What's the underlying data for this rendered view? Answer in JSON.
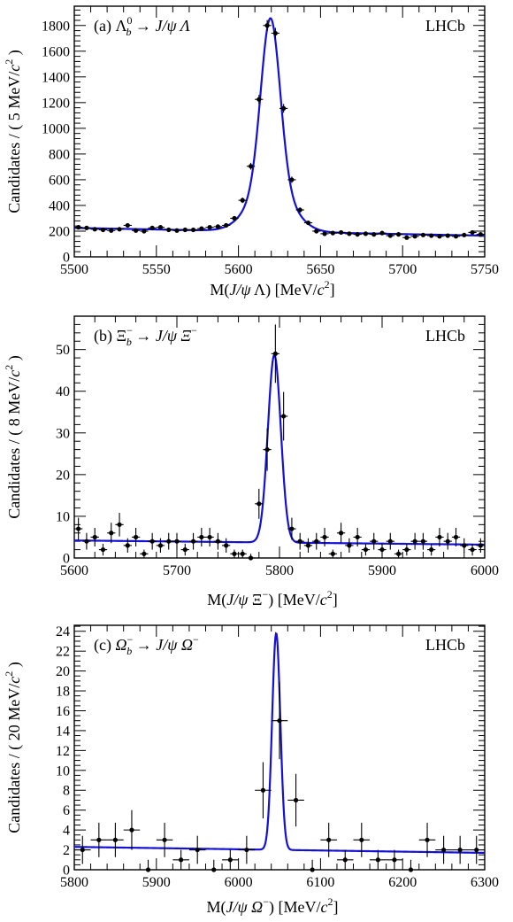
{
  "chart_data": [
    {
      "type": "scatter",
      "panel_label": "(a)",
      "process": {
        "parent": "Λ",
        "parent_sup": "0",
        "parent_sub": "b",
        "arrow": " → ",
        "final": "J/ψ Λ"
      },
      "experiment": "LHCb",
      "ylabel": {
        "pre": "Candidates / ( 5 MeV/",
        "c": "c",
        "sup": "2",
        "post": " )"
      },
      "xlabel": {
        "pre": "M(",
        "ital": "J/ψ",
        "mid": " Λ)",
        "unit_pre": "  [MeV/",
        "c": "c",
        "sup": "2",
        "post": "]"
      },
      "xlim": [
        5500,
        5750
      ],
      "ylim": [
        0,
        1950
      ],
      "xticks": [
        5500,
        5550,
        5600,
        5650,
        5700,
        5750
      ],
      "yticks": [
        0,
        200,
        400,
        600,
        800,
        1000,
        1200,
        1400,
        1600,
        1800
      ],
      "bin_width": 5,
      "data": {
        "x": [
          5502.5,
          5507.5,
          5512.5,
          5517.5,
          5522.5,
          5527.5,
          5532.5,
          5537.5,
          5542.5,
          5547.5,
          5552.5,
          5557.5,
          5562.5,
          5567.5,
          5572.5,
          5577.5,
          5582.5,
          5587.5,
          5592.5,
          5597.5,
          5602.5,
          5607.5,
          5612.5,
          5617.5,
          5622.5,
          5627.5,
          5632.5,
          5637.5,
          5642.5,
          5647.5,
          5652.5,
          5657.5,
          5662.5,
          5667.5,
          5672.5,
          5677.5,
          5682.5,
          5687.5,
          5692.5,
          5697.5,
          5702.5,
          5707.5,
          5712.5,
          5717.5,
          5722.5,
          5727.5,
          5732.5,
          5737.5,
          5742.5,
          5747.5
        ],
        "y": [
          230,
          225,
          215,
          210,
          205,
          215,
          245,
          205,
          200,
          225,
          230,
          210,
          205,
          210,
          210,
          220,
          230,
          235,
          245,
          300,
          440,
          705,
          1225,
          1800,
          1740,
          1155,
          600,
          365,
          265,
          200,
          180,
          185,
          190,
          180,
          175,
          180,
          175,
          185,
          165,
          175,
          150,
          160,
          170,
          165,
          160,
          165,
          160,
          170,
          190,
          175
        ]
      },
      "fit": {
        "mean": 5619.5,
        "sigma_core": 5.8,
        "sigma_wide": 12.5,
        "amp_core": 1300,
        "amp_wide": 360,
        "bkg_intercept": 225,
        "bkg_slope": -0.24
      }
    },
    {
      "type": "scatter",
      "panel_label": "(b)",
      "process": {
        "parent": "Ξ",
        "parent_sup": "−",
        "parent_sub": "b",
        "arrow": " → ",
        "final": "J/ψ Ξ",
        "final_sup": "−"
      },
      "experiment": "LHCb",
      "ylabel": {
        "pre": "Candidates / ( 8 MeV/",
        "c": "c",
        "sup": "2",
        "post": " )"
      },
      "xlabel": {
        "pre": "M(",
        "ital": "J/ψ",
        "mid": " Ξ",
        "mid_sup": "−",
        "mid_post": ")",
        "unit_pre": "  [MeV/",
        "c": "c",
        "sup": "2",
        "post": "]"
      },
      "xlim": [
        5600,
        6000
      ],
      "ylim": [
        0,
        58
      ],
      "xticks": [
        5600,
        5700,
        5800,
        5900,
        6000
      ],
      "yticks": [
        0,
        10,
        20,
        30,
        40,
        50
      ],
      "bin_width": 8,
      "data": {
        "x": [
          5604,
          5612,
          5620,
          5628,
          5636,
          5644,
          5652,
          5660,
          5668,
          5676,
          5684,
          5692,
          5700,
          5708,
          5716,
          5724,
          5732,
          5740,
          5748,
          5756,
          5764,
          5772,
          5780,
          5788,
          5796,
          5804,
          5812,
          5820,
          5828,
          5836,
          5844,
          5852,
          5860,
          5868,
          5876,
          5884,
          5892,
          5900,
          5908,
          5916,
          5924,
          5932,
          5940,
          5948,
          5956,
          5964,
          5972,
          5980,
          5988,
          5996
        ],
        "y": [
          7,
          4,
          5,
          2,
          6,
          8,
          3,
          5,
          1,
          4,
          3,
          4,
          4,
          2,
          4,
          5,
          5,
          4,
          3,
          1,
          1,
          0,
          13,
          26,
          49,
          34,
          7,
          4,
          3,
          4,
          5,
          1,
          6,
          3,
          5,
          2,
          4,
          2,
          4,
          1,
          2,
          4,
          4,
          2,
          5,
          4,
          5,
          3,
          2,
          3
        ]
      },
      "fit": {
        "mean": 5795,
        "sigma": 6.3,
        "amp": 45,
        "bkg_intercept": 4.2,
        "bkg_slope": -0.0025
      }
    },
    {
      "type": "scatter",
      "panel_label": "(c)",
      "process": {
        "parent": "Ω",
        "parent_sup": "−",
        "parent_sub": "b",
        "arrow": " → ",
        "final": "J/ψ Ω",
        "final_sup": "−"
      },
      "experiment": "LHCb",
      "ylabel": {
        "pre": "Candidates / ( 20 MeV/",
        "c": "c",
        "sup": "2",
        "post": " )"
      },
      "xlabel": {
        "pre": "M(",
        "ital": "J/ψ Ω",
        "mid_sup": "−",
        "mid_post": ")",
        "unit_pre": "  [MeV/",
        "c": "c",
        "sup": "2",
        "post": "]"
      },
      "xlim": [
        5800,
        6300
      ],
      "ylim": [
        0,
        24.6
      ],
      "xticks": [
        5800,
        5900,
        6000,
        6100,
        6200,
        6300
      ],
      "yticks": [
        0,
        2,
        4,
        6,
        8,
        10,
        12,
        14,
        16,
        18,
        20,
        22,
        24
      ],
      "bin_width": 20,
      "data": {
        "x": [
          5810,
          5830,
          5850,
          5870,
          5890,
          5910,
          5930,
          5950,
          5970,
          5990,
          6010,
          6030,
          6050,
          6070,
          6090,
          6110,
          6130,
          6150,
          6170,
          6190,
          6210,
          6230,
          6250,
          6270,
          6290
        ],
        "y": [
          2,
          3,
          3,
          4,
          0,
          3,
          1,
          2,
          0,
          1,
          2,
          8,
          15,
          7,
          0,
          3,
          1,
          3,
          1,
          1,
          0,
          3,
          2,
          2,
          2
        ]
      },
      "fit": {
        "mean": 6046,
        "sigma": 5.0,
        "amp": 21.8,
        "bkg_intercept": 2.3,
        "bkg_slope": -0.0012
      }
    }
  ]
}
